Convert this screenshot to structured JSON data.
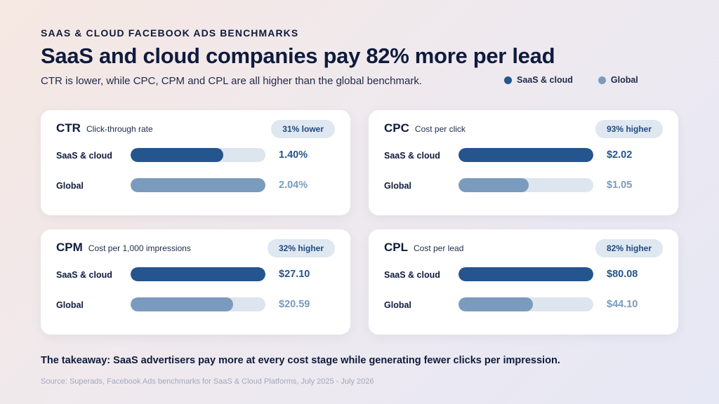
{
  "header": {
    "eyebrow": "SAAS & CLOUD FACEBOOK ADS BENCHMARKS",
    "title": "SaaS and cloud companies pay 82% more per lead",
    "subtitle": "CTR is lower, while CPC, CPM and CPL are all higher than the global benchmark."
  },
  "legend": [
    {
      "label": "SaaS & cloud",
      "color": "#24558e"
    },
    {
      "label": "Global",
      "color": "#7b9bbe"
    }
  ],
  "colors": {
    "saas": "#24558e",
    "global": "#7b9bbe",
    "track": "#dde5ef"
  },
  "chart_data": [
    {
      "type": "bar",
      "metric": "CTR",
      "description": "Click-through rate",
      "badge": "31% lower",
      "series": [
        {
          "name": "SaaS & cloud",
          "value": 1.4,
          "label": "1.40%"
        },
        {
          "name": "Global",
          "value": 2.04,
          "label": "2.04%"
        }
      ]
    },
    {
      "type": "bar",
      "metric": "CPC",
      "description": "Cost per click",
      "badge": "93% higher",
      "series": [
        {
          "name": "SaaS & cloud",
          "value": 2.02,
          "label": "$2.02"
        },
        {
          "name": "Global",
          "value": 1.05,
          "label": "$1.05"
        }
      ]
    },
    {
      "type": "bar",
      "metric": "CPM",
      "description": "Cost per 1,000 impressions",
      "badge": "32% higher",
      "series": [
        {
          "name": "SaaS & cloud",
          "value": 27.1,
          "label": "$27.10"
        },
        {
          "name": "Global",
          "value": 20.59,
          "label": "$20.59"
        }
      ]
    },
    {
      "type": "bar",
      "metric": "CPL",
      "description": "Cost per lead",
      "badge": "82% higher",
      "series": [
        {
          "name": "SaaS & cloud",
          "value": 80.08,
          "label": "$80.08"
        },
        {
          "name": "Global",
          "value": 44.1,
          "label": "$44.10"
        }
      ]
    }
  ],
  "footer": {
    "takeaway": "The takeaway: SaaS advertisers pay more at every cost stage while generating fewer clicks per impression.",
    "source": "Source: Superads, Facebook Ads benchmarks for SaaS & Cloud Platforms, July 2025 - July 2026"
  }
}
